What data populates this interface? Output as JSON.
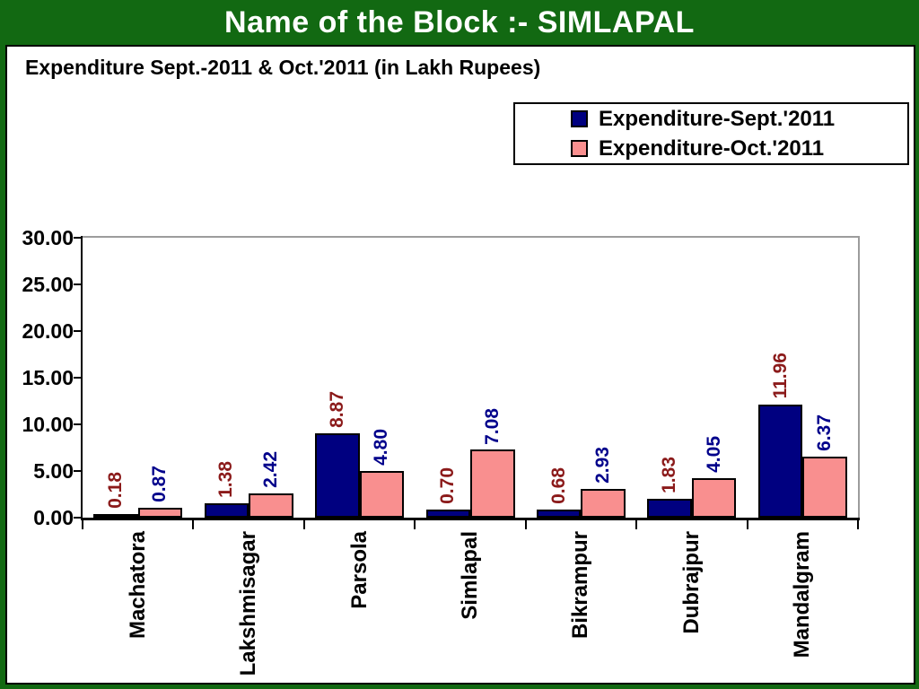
{
  "slide": {
    "header_title": "Name of the Block :- SIMLAPAL",
    "colors": {
      "frame_green": "#126912",
      "header_text": "#ffffff",
      "panel_background": "#ffffff",
      "axis_black": "#000000",
      "plot_wall_gray": "#9c9c9c"
    }
  },
  "chart_data": {
    "type": "bar",
    "title": "Expenditure Sept.-2011 & Oct.'2011 (in Lakh Rupees)",
    "categories": [
      "Machatora",
      "Lakshmisagar",
      "Parsola",
      "Simlapal",
      "Bikrampur",
      "Dubrajpur",
      "Mandalgram"
    ],
    "series": [
      {
        "name": "Expenditure-Sept.'2011",
        "values": [
          0.18,
          1.38,
          8.87,
          0.7,
          0.68,
          1.83,
          11.96
        ],
        "bar_color": "#000080",
        "label_color": "#8b1a1a"
      },
      {
        "name": "Expenditure-Oct.'2011",
        "values": [
          0.87,
          2.42,
          4.8,
          7.08,
          2.93,
          4.05,
          6.37
        ],
        "bar_color": "#f98f8f",
        "label_color": "#00008b"
      }
    ],
    "xlabel": "",
    "ylabel": "",
    "ylim": [
      0,
      30
    ],
    "ytick_step": 5,
    "yticks": [
      "0.00",
      "5.00",
      "10.00",
      "15.00",
      "20.00",
      "25.00",
      "30.00"
    ],
    "grid": false,
    "legend_position": "top-right",
    "value_label_format": "2-decimals",
    "value_label_rotation": -90,
    "category_label_rotation": -90
  }
}
